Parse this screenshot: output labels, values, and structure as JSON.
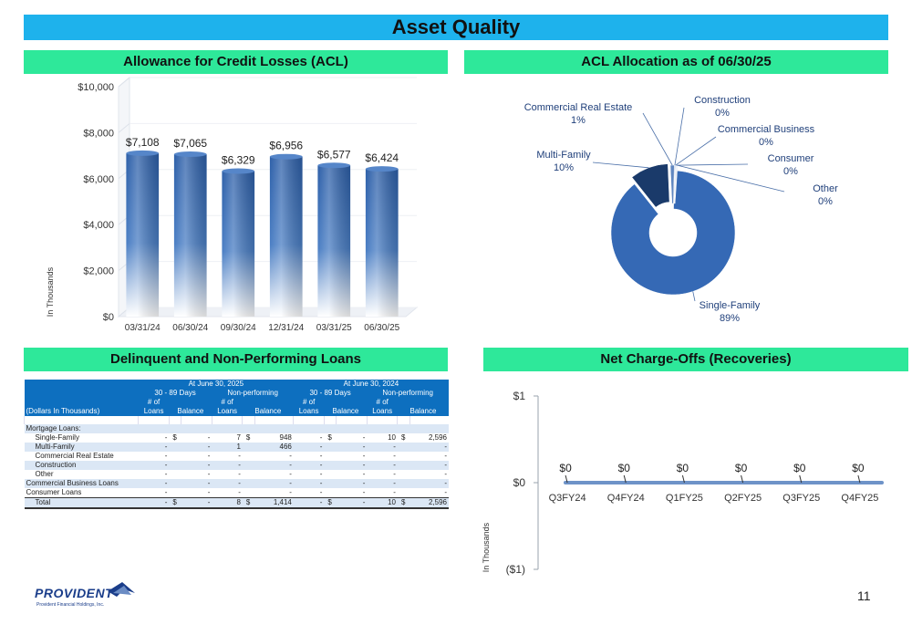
{
  "page": {
    "title": "Asset Quality",
    "page_number": "11"
  },
  "logo": {
    "name": "PROVIDENT",
    "subtitle": "Provident Financial Holdings, Inc."
  },
  "colors": {
    "title_bar": "#1eb2ec",
    "section_header": "#2ee89a",
    "bar": "#3d70b8",
    "donut_main": "#3569b5",
    "donut_dark": "#1a3a6a",
    "table_header": "#0d6fbf",
    "line": "#6e93c8"
  },
  "sections": {
    "acl": "Allowance for Credit Losses (ACL)",
    "allocation": "ACL Allocation as of 06/30/25",
    "delinquent": "Delinquent and Non-Performing Loans",
    "nco": "Net Charge-Offs (Recoveries)"
  },
  "chart_data": [
    {
      "id": "acl",
      "type": "bar",
      "title": "Allowance for Credit Losses (ACL)",
      "ylabel": "In Thousands",
      "categories": [
        "03/31/24",
        "06/30/24",
        "09/30/24",
        "12/31/24",
        "03/31/25",
        "06/30/25"
      ],
      "values": [
        7108,
        7065,
        6329,
        6956,
        6577,
        6424
      ],
      "data_labels": [
        "$7,108",
        "$7,065",
        "$6,329",
        "$6,956",
        "$6,577",
        "$6,424"
      ],
      "yticks": [
        "$0",
        "$2,000",
        "$4,000",
        "$6,000",
        "$8,000",
        "$10,000"
      ],
      "ylim": [
        0,
        10000
      ]
    },
    {
      "id": "allocation",
      "type": "pie",
      "title": "ACL Allocation as of 06/30/25",
      "slices": [
        {
          "name": "Single-Family",
          "pct_label": "89%",
          "value": 89
        },
        {
          "name": "Multi-Family",
          "pct_label": "10%",
          "value": 10
        },
        {
          "name": "Commercial Real Estate",
          "pct_label": "1%",
          "value": 1
        },
        {
          "name": "Construction",
          "pct_label": "0%",
          "value": 0
        },
        {
          "name": "Commercial Business",
          "pct_label": "0%",
          "value": 0
        },
        {
          "name": "Consumer",
          "pct_label": "0%",
          "value": 0
        },
        {
          "name": "Other",
          "pct_label": "0%",
          "value": 0
        }
      ]
    },
    {
      "id": "nco",
      "type": "line",
      "title": "Net Charge-Offs (Recoveries)",
      "ylabel": "In Thousands",
      "categories": [
        "Q3FY24",
        "Q4FY24",
        "Q1FY25",
        "Q2FY25",
        "Q3FY25",
        "Q4FY25"
      ],
      "values": [
        0,
        0,
        0,
        0,
        0,
        0
      ],
      "data_labels": [
        "$0",
        "$0",
        "$0",
        "$0",
        "$0",
        "$0"
      ],
      "yticks": [
        "($1)",
        "$0",
        "$1"
      ],
      "ylim": [
        -1,
        1
      ]
    }
  ],
  "table": {
    "group_2025": "At June 30, 2025",
    "group_2024": "At June 30, 2024",
    "sub_3089": "30 - 89 Days",
    "sub_np": "Non-performing",
    "num_of": "# of",
    "loans": "Loans",
    "balance": "Balance",
    "dollars_label": "(Dollars In Thousands)",
    "mortgage_label": "Mortgage Loans:",
    "rows": [
      {
        "label": "Single-Family",
        "indent": true,
        "shade": false,
        "c": [
          "-",
          "$",
          "-",
          "7",
          "$",
          "948",
          "-",
          "$",
          "-",
          "10",
          "$",
          "2,596"
        ]
      },
      {
        "label": "Multi-Family",
        "indent": true,
        "shade": true,
        "c": [
          "-",
          "",
          "-",
          "1",
          "",
          "466",
          "-",
          "",
          "-",
          "-",
          "",
          "-"
        ]
      },
      {
        "label": "Commercial Real Estate",
        "indent": true,
        "shade": false,
        "c": [
          "-",
          "",
          "-",
          "-",
          "",
          "-",
          "-",
          "",
          "-",
          "-",
          "",
          "-"
        ]
      },
      {
        "label": "Construction",
        "indent": true,
        "shade": true,
        "c": [
          "-",
          "",
          "-",
          "-",
          "",
          "-",
          "-",
          "",
          "-",
          "-",
          "",
          "-"
        ]
      },
      {
        "label": "Other",
        "indent": true,
        "shade": false,
        "c": [
          "-",
          "",
          "-",
          "-",
          "",
          "-",
          "-",
          "",
          "-",
          "-",
          "",
          "-"
        ]
      },
      {
        "label": "Commercial Business Loans",
        "indent": false,
        "shade": true,
        "c": [
          "-",
          "",
          "-",
          "-",
          "",
          "-",
          "-",
          "",
          "-",
          "-",
          "",
          "-"
        ]
      },
      {
        "label": "Consumer Loans",
        "indent": false,
        "shade": false,
        "c": [
          "-",
          "",
          "-",
          "-",
          "",
          "-",
          "-",
          "",
          "-",
          "-",
          "",
          "-"
        ]
      }
    ],
    "total": {
      "label": "Total",
      "c": [
        "-",
        "$",
        "-",
        "8",
        "$",
        "1,414",
        "-",
        "$",
        "-",
        "10",
        "$",
        "2,596"
      ]
    }
  }
}
